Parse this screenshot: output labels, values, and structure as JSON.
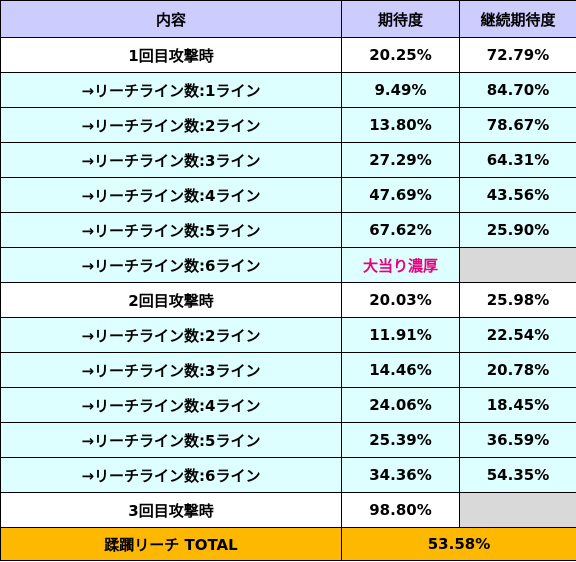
{
  "header": {
    "col1": "内容",
    "col2": "期待度",
    "col3": "継続期待度"
  },
  "rows": [
    {
      "label": "1回目攻撃時",
      "expect": "20.25%",
      "continue": "72.79%"
    },
    {
      "label": "→リーチライン数:1ライン",
      "expect": "9.49%",
      "continue": "84.70%"
    },
    {
      "label": "→リーチライン数:2ライン",
      "expect": "13.80%",
      "continue": "78.67%"
    },
    {
      "label": "→リーチライン数:3ライン",
      "expect": "27.29%",
      "continue": "64.31%"
    },
    {
      "label": "→リーチライン数:4ライン",
      "expect": "47.69%",
      "continue": "43.56%"
    },
    {
      "label": "→リーチライン数:5ライン",
      "expect": "67.62%",
      "continue": "25.90%"
    },
    {
      "label": "→リーチライン数:6ライン",
      "expect": "大当り濃厚",
      "continue": ""
    },
    {
      "label": "2回目攻撃時",
      "expect": "20.03%",
      "continue": "25.98%"
    },
    {
      "label": "→リーチライン数:2ライン",
      "expect": "11.91%",
      "continue": "22.54%"
    },
    {
      "label": "→リーチライン数:3ライン",
      "expect": "14.46%",
      "continue": "20.78%"
    },
    {
      "label": "→リーチライン数:4ライン",
      "expect": "24.06%",
      "continue": "18.45%"
    },
    {
      "label": "→リーチライン数:5ライン",
      "expect": "25.39%",
      "continue": "36.59%"
    },
    {
      "label": "→リーチライン数:6ライン",
      "expect": "34.36%",
      "continue": "54.35%"
    },
    {
      "label": "3回目攻撃時",
      "expect": "98.80%",
      "continue": ""
    }
  ],
  "total": {
    "label": "蹂躙リーチ TOTAL",
    "value": "53.58%"
  },
  "colors": {
    "header_bg": "#ccccff",
    "sub_row_bg": "#ddffff",
    "empty_cell_bg": "#d9d9d9",
    "jackpot_text": "#e6007e",
    "total_bg": "#ffb800"
  }
}
